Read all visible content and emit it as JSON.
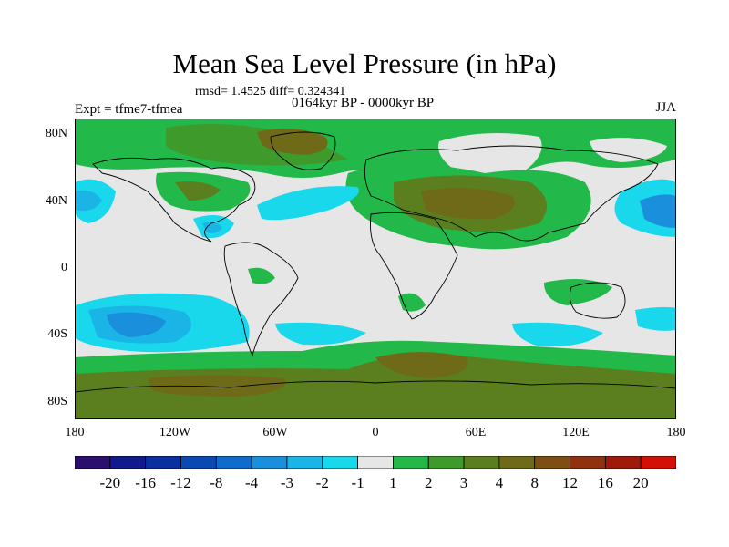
{
  "title": "Mean Sea Level Pressure (in hPa)",
  "stats_line": "rmsd= 1.4525 diff= 0.324341",
  "period_line": "0164kyr BP - 0000kyr BP",
  "experiment_label": "Expt = tfme7-tfmea",
  "season_label": "JJA",
  "y_ticks": [
    "80N",
    "40N",
    "0",
    "40S",
    "80S"
  ],
  "x_ticks": [
    "180",
    "120W",
    "60W",
    "0",
    "60E",
    "120E",
    "180"
  ],
  "colorbar": {
    "labels": [
      "-20",
      "-16",
      "-12",
      "-8",
      "-4",
      "-3",
      "-2",
      "-1",
      "1",
      "2",
      "3",
      "4",
      "8",
      "12",
      "16",
      "20"
    ],
    "colors": [
      "#2a0f6e",
      "#101a8c",
      "#0a2fa0",
      "#0a48b4",
      "#0f6ccc",
      "#1a90dc",
      "#1ab4e6",
      "#1ad8ec",
      "#e6e6e6",
      "#22b84a",
      "#3f9a2c",
      "#5b7e1e",
      "#6e6a18",
      "#7e4e14",
      "#8e3210",
      "#a01a0c",
      "#d21008"
    ]
  },
  "map_colors": {
    "neutral": "#e6e6e6",
    "band_1_2": "#22b84a",
    "band_2_3": "#3f9a2c",
    "band_3_4": "#5b7e1e",
    "band_4_8": "#6e6a18",
    "band_neg_1_2": "#1ad8ec",
    "band_neg_2_3": "#1ab4e6",
    "band_neg_3_4": "#1a90dc",
    "band_neg_4_8": "#0f6ccc"
  }
}
